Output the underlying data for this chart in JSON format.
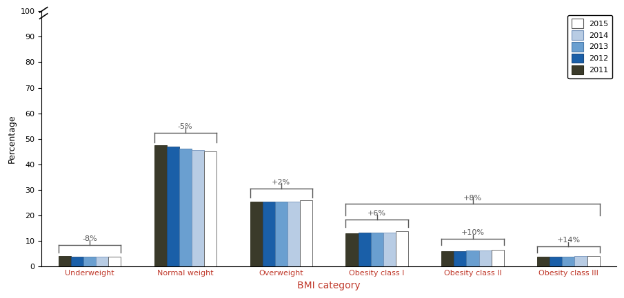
{
  "categories": [
    "Underweight",
    "Normal weight",
    "Overweight",
    "Obesity class I",
    "Obesity class II",
    "Obesity class III"
  ],
  "years": [
    "2011",
    "2012",
    "2013",
    "2014",
    "2015"
  ],
  "values": {
    "Underweight": [
      4.1,
      4.0,
      3.9,
      3.8,
      3.8
    ],
    "Normal weight": [
      47.5,
      47.0,
      46.3,
      45.7,
      45.1
    ],
    "Overweight": [
      25.4,
      25.4,
      25.4,
      25.4,
      25.9
    ],
    "Obesity class I": [
      13.1,
      13.2,
      13.3,
      13.3,
      13.9
    ],
    "Obesity class II": [
      6.1,
      6.1,
      6.2,
      6.4,
      6.6
    ],
    "Obesity class III": [
      3.8,
      3.9,
      4.0,
      4.1,
      4.3
    ]
  },
  "bar_colors_by_year": {
    "2011": "#3a3a2a",
    "2012": "#1a5fa8",
    "2013": "#6a9fd0",
    "2014": "#b8cce4",
    "2015": "#ffffff"
  },
  "bar_edge_colors_by_year": {
    "2011": "#2a2a1a",
    "2012": "#1a4a80",
    "2013": "#4a7aaa",
    "2014": "#7090b8",
    "2015": "#555555"
  },
  "xlabel": "BMI category",
  "ylabel": "Percentage",
  "xlabel_color": "#c0392b",
  "xticklabel_color": "#c0392b",
  "annotation_color": "#555555",
  "bracket_color": "#555555",
  "ylim": [
    0,
    100
  ],
  "yticks": [
    0,
    10,
    20,
    30,
    40,
    50,
    60,
    70,
    80,
    90,
    100
  ],
  "legend_years": [
    "2015",
    "2014",
    "2013",
    "2012",
    "2011"
  ],
  "bar_width": 0.13,
  "figsize": [
    9.05,
    4.33
  ],
  "dpi": 100
}
